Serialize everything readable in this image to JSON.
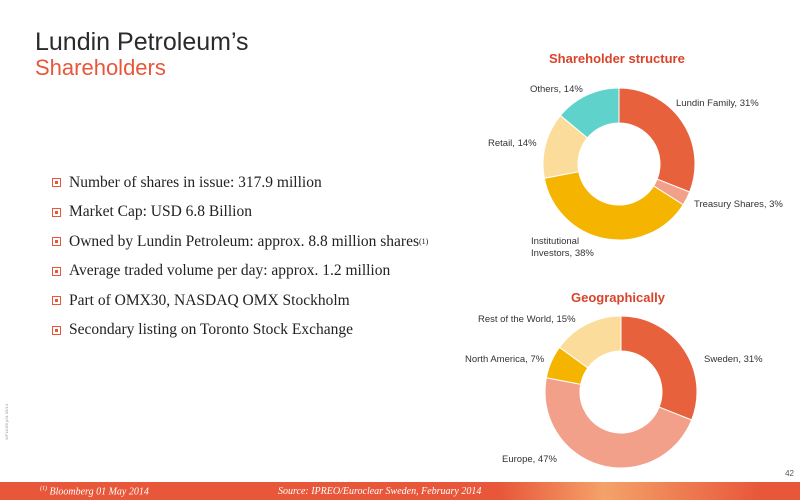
{
  "header": {
    "title": "Lundin Petroleum’s",
    "subtitle": "Shareholders"
  },
  "bullets": [
    {
      "text": "Number of shares in issue: 317.9 million"
    },
    {
      "text": "Market Cap: USD 6.8 Billion"
    },
    {
      "text": "Owned by Lundin Petroleum:  approx. 8.8 million shares",
      "sup": "(1)"
    },
    {
      "text": "Average traded volume per day:  approx. 1.2 million"
    },
    {
      "text": "Part of OMX30, NASDAQ OMX Stockholm"
    },
    {
      "text": "Secondary listing on Toronto Stock Exchange"
    }
  ],
  "chart_data": [
    {
      "type": "pie",
      "title": "Shareholder structure",
      "slices": [
        {
          "label": "Lundin Family, 31%",
          "value": 31,
          "color": "#e8613d"
        },
        {
          "label": "Treasury Shares, 3%",
          "value": 3,
          "color": "#f2a08a"
        },
        {
          "label": "Institutional Investors, 38%",
          "label_lines": [
            "Institutional",
            "Investors, 38%"
          ],
          "value": 38,
          "color": "#f5b400"
        },
        {
          "label": "Retail, 14%",
          "value": 14,
          "color": "#fbdc9a"
        },
        {
          "label": "Others, 14%",
          "value": 14,
          "color": "#5fd3cb"
        }
      ]
    },
    {
      "type": "pie",
      "title": "Geographically",
      "slices": [
        {
          "label": "Sweden, 31%",
          "value": 31,
          "color": "#e8613d"
        },
        {
          "label": "Europe, 47%",
          "value": 47,
          "color": "#f2a08a"
        },
        {
          "label": "North America, 7%",
          "value": 7,
          "color": "#f5b400"
        },
        {
          "label": "Rest of the World, 15%",
          "value": 15,
          "color": "#fbdc9a"
        }
      ]
    }
  ],
  "footer": {
    "footnote_marker": "(1)",
    "footnote_text": " Bloomberg 01 May 2014",
    "source": "Source: IPREO/Euroclear Sweden, February 2014",
    "page_number": "42",
    "side_code": "WF11055 p01 05/14"
  }
}
